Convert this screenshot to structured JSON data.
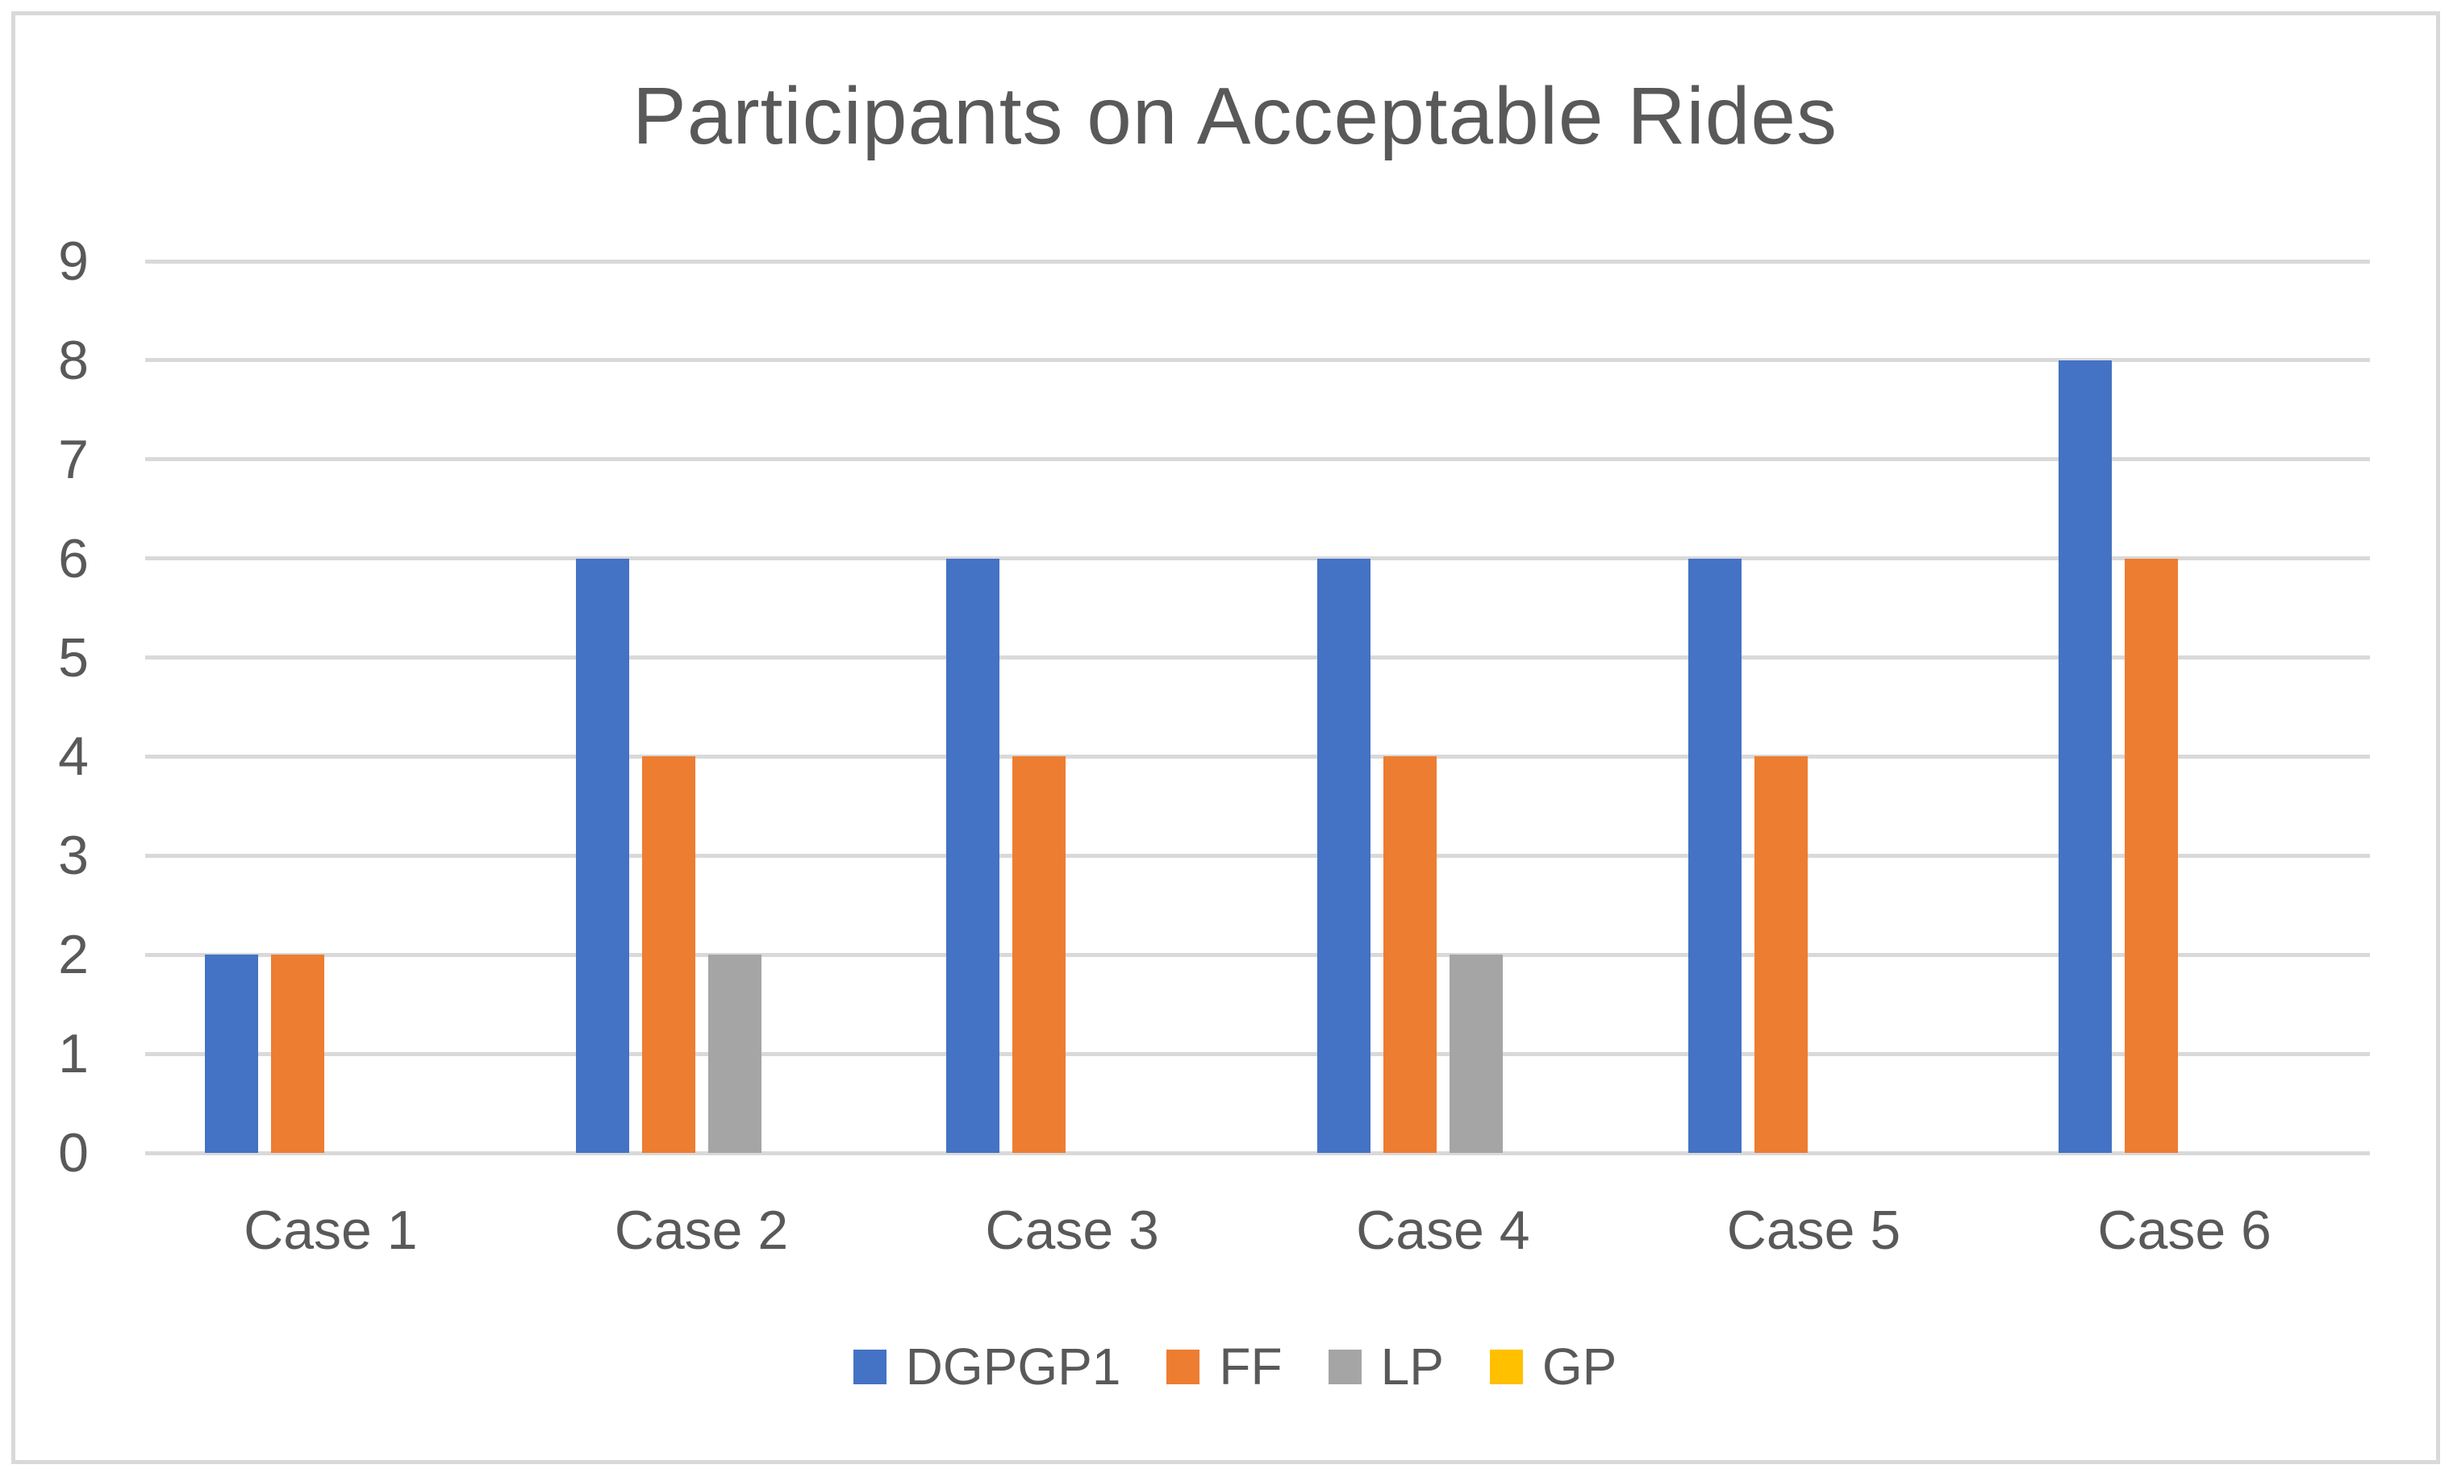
{
  "chart_data": {
    "type": "bar",
    "title": "Participants on Acceptable Rides",
    "categories": [
      "Case 1",
      "Case 2",
      "Case 3",
      "Case 4",
      "Case 5",
      "Case 6"
    ],
    "series": [
      {
        "name": "DGPGP1",
        "color": "#4472C4",
        "values": [
          2,
          6,
          6,
          6,
          6,
          8
        ]
      },
      {
        "name": "FF",
        "color": "#ED7D31",
        "values": [
          2,
          4,
          4,
          4,
          4,
          6
        ]
      },
      {
        "name": "LP",
        "color": "#A5A5A5",
        "values": [
          0,
          2,
          0,
          2,
          0,
          0
        ]
      },
      {
        "name": "GP",
        "color": "#FFC000",
        "values": [
          0,
          0,
          0,
          0,
          0,
          0
        ]
      }
    ],
    "xlabel": "",
    "ylabel": "",
    "ylim": [
      0,
      9
    ],
    "yticks": [
      0,
      1,
      2,
      3,
      4,
      5,
      6,
      7,
      8,
      9
    ],
    "grid": true,
    "legend_position": "bottom"
  },
  "style": {
    "text_color": "#595959",
    "gridline_color": "#D9D9D9",
    "border_color": "#D9D9D9",
    "background_color": "#FFFFFF"
  }
}
